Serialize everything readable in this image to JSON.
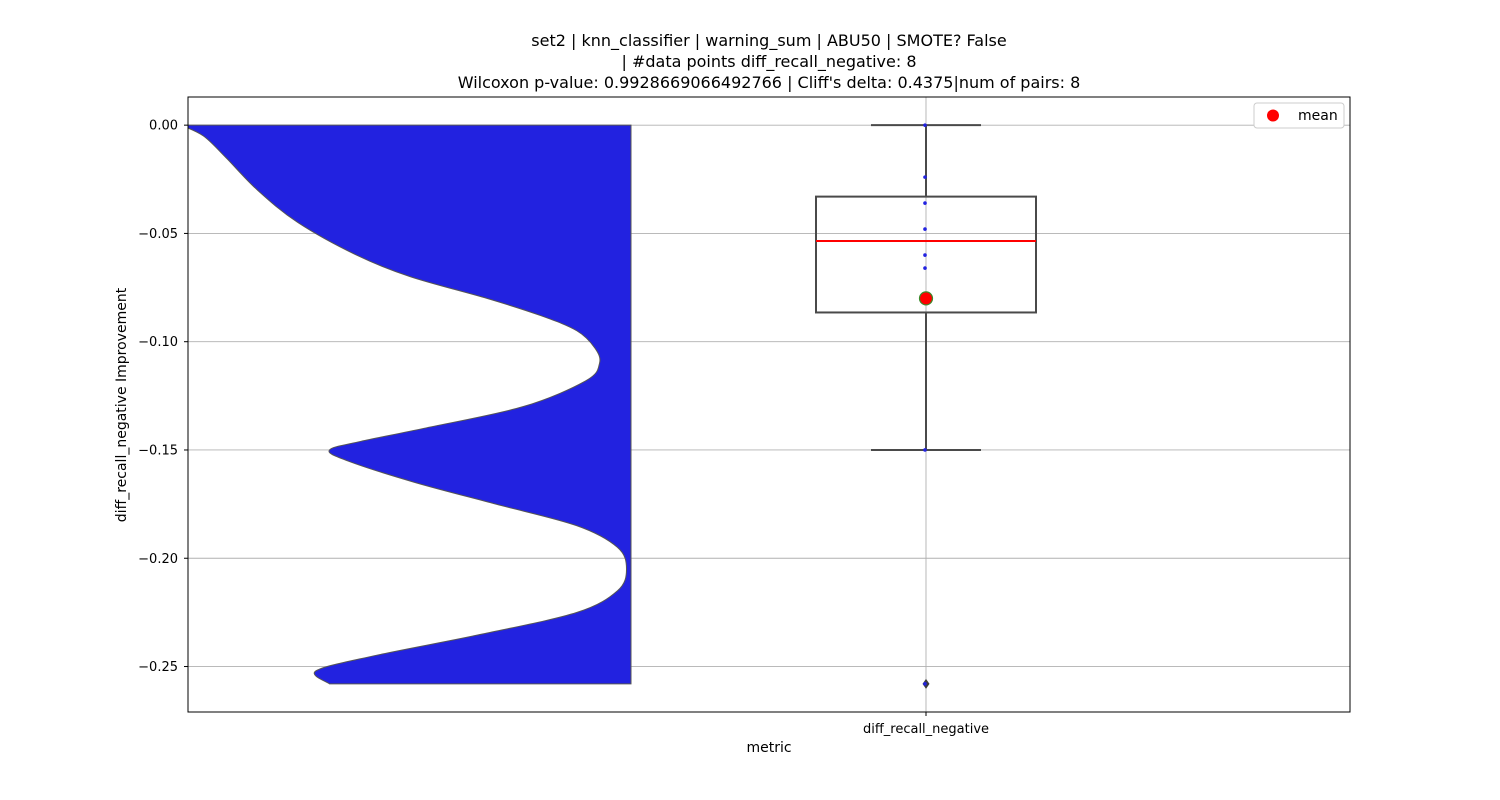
{
  "chart_data": {
    "type": "violin",
    "title_lines": [
      "set2 | knn_classifier | warning_sum | ABU50 | SMOTE? False",
      "| #data points diff_recall_negative: 8",
      "Wilcoxon p-value: 0.9928669066492766 | Cliff's delta: 0.4375|num of pairs: 8"
    ],
    "xlabel": "metric",
    "ylabel": "diff_recall_negative Improvement",
    "categories": [
      "diff_recall_negative"
    ],
    "ylim": [
      -0.271,
      0.013
    ],
    "yticks": [
      0.0,
      -0.05,
      -0.1,
      -0.15,
      -0.2,
      -0.25
    ],
    "ytick_labels": [
      "0.00",
      "−0.05",
      "−0.10",
      "−0.15",
      "−0.20",
      "−0.25"
    ],
    "grid": true,
    "legend": {
      "position": "top-right",
      "entries": [
        {
          "label": "mean",
          "color": "#ff0000",
          "marker": "circle"
        }
      ]
    },
    "violin": {
      "color": "#2222e0",
      "side": "left",
      "y_range": [
        -0.258,
        0.0
      ],
      "density_profile": [
        {
          "y": 0.0,
          "w": 1.0
        },
        {
          "y": -0.005,
          "w": 0.95
        },
        {
          "y": -0.015,
          "w": 0.9
        },
        {
          "y": -0.03,
          "w": 0.83
        },
        {
          "y": -0.045,
          "w": 0.74
        },
        {
          "y": -0.06,
          "w": 0.61
        },
        {
          "y": -0.07,
          "w": 0.49
        },
        {
          "y": -0.08,
          "w": 0.32
        },
        {
          "y": -0.088,
          "w": 0.2
        },
        {
          "y": -0.095,
          "w": 0.12
        },
        {
          "y": -0.103,
          "w": 0.08
        },
        {
          "y": -0.11,
          "w": 0.07
        },
        {
          "y": -0.118,
          "w": 0.1
        },
        {
          "y": -0.13,
          "w": 0.24
        },
        {
          "y": -0.14,
          "w": 0.46
        },
        {
          "y": -0.146,
          "w": 0.6
        },
        {
          "y": -0.15,
          "w": 0.67
        },
        {
          "y": -0.155,
          "w": 0.63
        },
        {
          "y": -0.165,
          "w": 0.48
        },
        {
          "y": -0.175,
          "w": 0.3
        },
        {
          "y": -0.185,
          "w": 0.12
        },
        {
          "y": -0.195,
          "w": 0.03
        },
        {
          "y": -0.205,
          "w": 0.01
        },
        {
          "y": -0.215,
          "w": 0.03
        },
        {
          "y": -0.225,
          "w": 0.12
        },
        {
          "y": -0.235,
          "w": 0.33
        },
        {
          "y": -0.245,
          "w": 0.57
        },
        {
          "y": -0.252,
          "w": 0.7
        },
        {
          "y": -0.258,
          "w": 0.67
        }
      ]
    },
    "box": {
      "q1": -0.0865,
      "median": -0.0535,
      "q3": -0.033,
      "whisker_low": -0.15,
      "whisker_high": 0.0,
      "outliers": [
        -0.258
      ],
      "mean": -0.08,
      "median_color": "#ff0000",
      "box_color": "#4a4a4a"
    },
    "points": [
      0.0,
      -0.024,
      -0.036,
      -0.048,
      -0.06,
      -0.066,
      -0.15,
      -0.258
    ]
  }
}
